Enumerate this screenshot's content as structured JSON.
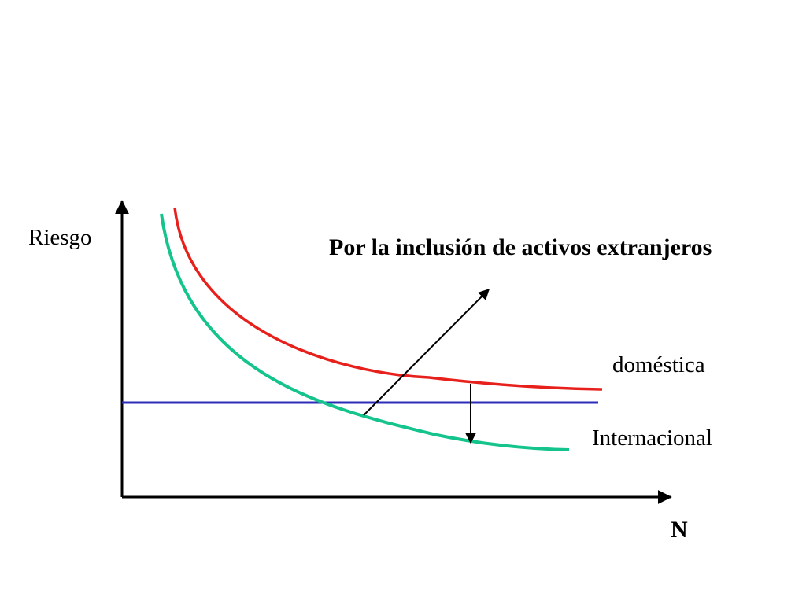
{
  "chart_data": {
    "type": "line",
    "title": "",
    "xlabel": "N",
    "ylabel": "Riesgo",
    "grid": false,
    "annotation": "Por la inclusión de activos extranjeros",
    "series": [
      {
        "name": "doméstica",
        "color": "#e8201c"
      },
      {
        "name": "Internacional",
        "color": "#14c48c"
      }
    ],
    "baseline": {
      "color": "#2c2cb8"
    }
  }
}
